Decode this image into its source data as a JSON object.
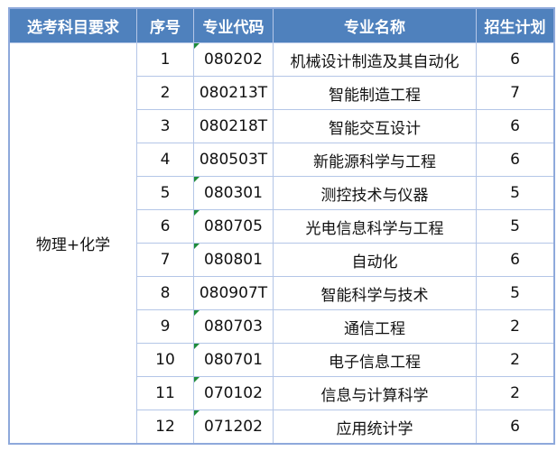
{
  "headers": [
    "选考科目要求",
    "序号",
    "专业代码",
    "专业名称",
    "招生计划"
  ],
  "subject_requirement": "物理+化学",
  "rows": [
    {
      "no": "1",
      "code": "080202",
      "name": "机械设计制造及其自动化",
      "plan": "6",
      "flag": true
    },
    {
      "no": "2",
      "code": "080213T",
      "name": "智能制造工程",
      "plan": "7",
      "flag": false
    },
    {
      "no": "3",
      "code": "080218T",
      "name": "智能交互设计",
      "plan": "6",
      "flag": false
    },
    {
      "no": "4",
      "code": "080503T",
      "name": "新能源科学与工程",
      "plan": "6",
      "flag": false
    },
    {
      "no": "5",
      "code": "080301",
      "name": "测控技术与仪器",
      "plan": "5",
      "flag": true
    },
    {
      "no": "6",
      "code": "080705",
      "name": "光电信息科学与工程",
      "plan": "5",
      "flag": true
    },
    {
      "no": "7",
      "code": "080801",
      "name": "自动化",
      "plan": "6",
      "flag": true
    },
    {
      "no": "8",
      "code": "080907T",
      "name": "智能科学与技术",
      "plan": "5",
      "flag": false
    },
    {
      "no": "9",
      "code": "080703",
      "name": "通信工程",
      "plan": "2",
      "flag": true
    },
    {
      "no": "10",
      "code": "080701",
      "name": "电子信息工程",
      "plan": "2",
      "flag": true
    },
    {
      "no": "11",
      "code": "070102",
      "name": "信息与计算科学",
      "plan": "2",
      "flag": true
    },
    {
      "no": "12",
      "code": "071202",
      "name": "应用统计学",
      "plan": "6",
      "flag": true
    }
  ],
  "colors": {
    "header_bg": "#4F81BD",
    "border": "#B4C6E7",
    "cell_flag": "#1E8C3A"
  }
}
